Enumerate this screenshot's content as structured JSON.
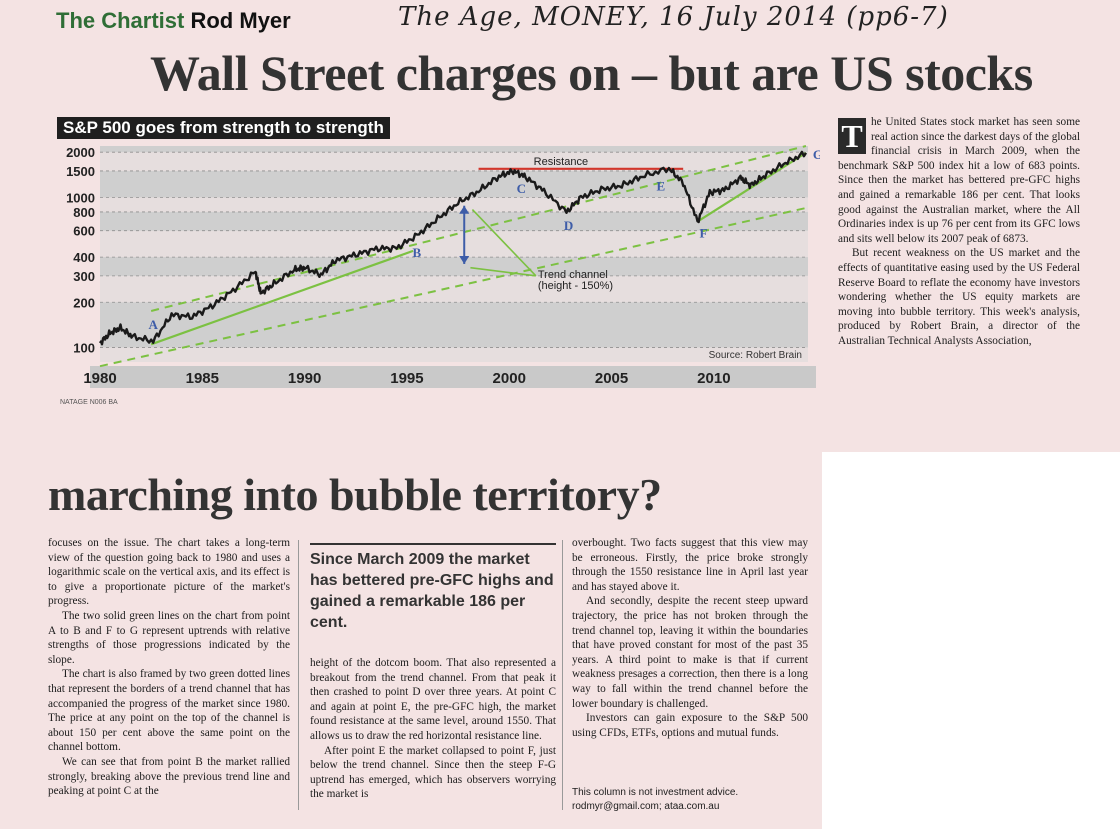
{
  "header": {
    "column_name": "The Chartist",
    "author": "Rod Myer",
    "handwritten_note": "The Age, MONEY, 16 July 2014 (pp6-7)",
    "headline_line1": "Wall Street charges on – but are US stocks",
    "headline_line2": "marching into bubble territory?"
  },
  "intro": {
    "drop_cap": "T",
    "p1": "he United States stock market has seen some real action since the darkest days of the global financial crisis in March 2009, when the benchmark S&P 500 index hit a low of 683 points. Since then the market has bettered pre-GFC highs and gained a remarkable 186 per cent. That looks good against the Australian market, where the All Ordinaries index is up 76 per cent from its GFC lows and sits well below its 2007 peak of 6873.",
    "p2": "But recent weakness on the US market and the effects of quantitative easing used by the US Federal Reserve Board to reflate the economy have investors wondering whether the US equity markets are moving into bubble territory. This week's analysis, produced by Robert Brain, a director of the Australian Technical Analysts Association,"
  },
  "col1": {
    "p1": "focuses on the issue. The chart takes a long-term view of the question going back to 1980 and uses a logarithmic scale on the vertical axis, and its effect is to give a proportionate picture of the market's progress.",
    "p2": "The two solid green lines on the chart from point A to B and F to G represent uptrends with relative strengths of those progressions indicated by the slope.",
    "p3": "The chart is also framed by two green dotted lines that represent the borders of a trend channel that has accompanied the progress of the market since 1980. The price at any point on the top of the channel is about 150 per cent above the same point on the channel bottom.",
    "p4": "We can see that from point B the market rallied strongly, breaking above the previous trend line and peaking at point C at the"
  },
  "pullquote": "Since March 2009 the market has bettered pre-GFC highs and gained a remarkable 186 per cent.",
  "col2": {
    "p1": "height of the dotcom boom. That also represented a breakout from the trend channel. From that peak it then crashed to point D over three years. At point C and again at point E, the pre-GFC high, the market found resistance at the same level, around 1550. That allows us to draw the red horizontal resistance line.",
    "p2": "After point E the market collapsed to point F, just below the trend channel. Since then the steep F-G uptrend has emerged, which has observers worrying the market is"
  },
  "col3": {
    "p1": "overbought. Two facts suggest that this view may be erroneous. Firstly, the price broke strongly through the 1550 resistance line in April last year and has stayed above it.",
    "p2": "And secondly, despite the recent steep upward trajectory, the price has not broken through the trend channel top, leaving it within the boundaries that have proved constant for most of the past 35 years. A third point to make is that if current weakness presages a correction, then there is a long way to fall within the trend channel before the lower boundary is challenged.",
    "p3": "Investors can gain exposure to the S&P 500 using CFDs, ETFs, options and mutual funds."
  },
  "disclaimer": {
    "line1": "This column is not investment advice.",
    "line2": "rodmyr@gmail.com; ataa.com.au"
  },
  "credit": "NATAGE N006   BA",
  "colors": {
    "chart_line": "#1a1a1a",
    "trend_green": "#7cc142",
    "resistance_red": "#d2352b",
    "arrow_blue": "#3e5da8",
    "band_gray": "#cfcfcf"
  },
  "chart_data": {
    "type": "line",
    "title": "S&P 500 goes from strength to strength",
    "source": "Source: Robert Brain",
    "y_scale": "log",
    "ylim": [
      80,
      2200
    ],
    "xlim": [
      1980,
      2014.6
    ],
    "y_ticks": [
      100,
      200,
      300,
      400,
      600,
      800,
      1000,
      1500,
      2000
    ],
    "x_ticks": [
      1980,
      1985,
      1990,
      1995,
      2000,
      2005,
      2010
    ],
    "series": [
      {
        "x": [
          1980,
          1980.5,
          1981,
          1981.6,
          1982.6,
          1983.5,
          1984.5,
          1985.5,
          1986.5,
          1987.6,
          1987.85,
          1988.5,
          1989.5,
          1990,
          1990.8,
          1991.5,
          1992.5,
          1993.5,
          1994.5,
          1995.5,
          1996.5,
          1997.5,
          1998.5,
          1999.5,
          2000.2,
          2000.8,
          2001.7,
          2002.8,
          2003.5,
          2004.5,
          2005.5,
          2006.5,
          2007.8,
          2008.5,
          2009.2,
          2009.8,
          2010.5,
          2011.3,
          2011.8,
          2012.5,
          2013.5,
          2014.5
        ],
        "y": [
          107,
          125,
          135,
          118,
          110,
          165,
          160,
          190,
          240,
          320,
          230,
          265,
          330,
          340,
          305,
          380,
          415,
          455,
          460,
          560,
          720,
          920,
          1100,
          1380,
          1500,
          1370,
          1100,
          800,
          1000,
          1130,
          1200,
          1380,
          1560,
          1250,
          690,
          1080,
          1120,
          1350,
          1200,
          1400,
          1700,
          1980
        ]
      }
    ],
    "trend_channel": {
      "upper": {
        "x": [
          1982.5,
          2014.5
        ],
        "y": [
          175,
          2200
        ]
      },
      "lower": {
        "x": [
          1980,
          2014.5
        ],
        "y": [
          75,
          850
        ]
      }
    },
    "uptrend_lines": [
      {
        "label": "A-B",
        "x": [
          1982.5,
          1995.3
        ],
        "y": [
          105,
          440
        ]
      },
      {
        "label": "F-G",
        "x": [
          2009.2,
          2014.5
        ],
        "y": [
          690,
          1980
        ]
      }
    ],
    "resistance": {
      "label": "Resistance",
      "y": 1550,
      "x": [
        1998.5,
        2008.5
      ]
    },
    "points": [
      {
        "label": "A",
        "x": 1982.6,
        "y": 110
      },
      {
        "label": "B",
        "x": 1994.8,
        "y": 440
      },
      {
        "label": "C",
        "x": 2000.2,
        "y": 1500
      },
      {
        "label": "D",
        "x": 2002.8,
        "y": 800
      },
      {
        "label": "E",
        "x": 2007.8,
        "y": 1560
      },
      {
        "label": "F",
        "x": 2009.2,
        "y": 690
      },
      {
        "label": "G",
        "x": 2014.5,
        "y": 1980
      }
    ],
    "annotation": {
      "line1": "Trend channel",
      "line2": "(height - 150%)"
    }
  }
}
